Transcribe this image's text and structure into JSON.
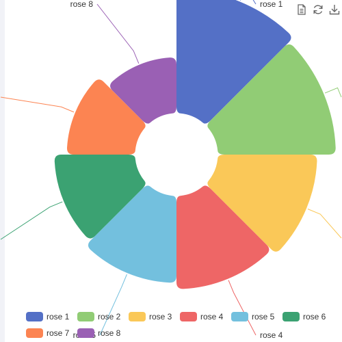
{
  "chart_data": {
    "type": "pie",
    "rose_type": "radius",
    "title": "",
    "inner_radius_fraction": 0.25,
    "slices": [
      {
        "name": "rose 1",
        "value": 40,
        "color": "#5470c6"
      },
      {
        "name": "rose 2",
        "value": 38,
        "color": "#91cc75"
      },
      {
        "name": "rose 3",
        "value": 32,
        "color": "#fac858"
      },
      {
        "name": "rose 4",
        "value": 30,
        "color": "#ee6666"
      },
      {
        "name": "rose 5",
        "value": 28,
        "color": "#73c0de"
      },
      {
        "name": "rose 6",
        "value": 26,
        "color": "#3ba272"
      },
      {
        "name": "rose 7",
        "value": 22,
        "color": "#fc8452"
      },
      {
        "name": "rose 8",
        "value": 18,
        "color": "#9a60b4"
      }
    ],
    "legend_position": "bottom",
    "labels_visible": true
  },
  "toolbox": {
    "icons": [
      "data-view-icon",
      "restore-icon",
      "save-as-image-icon"
    ],
    "color": "#666666"
  }
}
